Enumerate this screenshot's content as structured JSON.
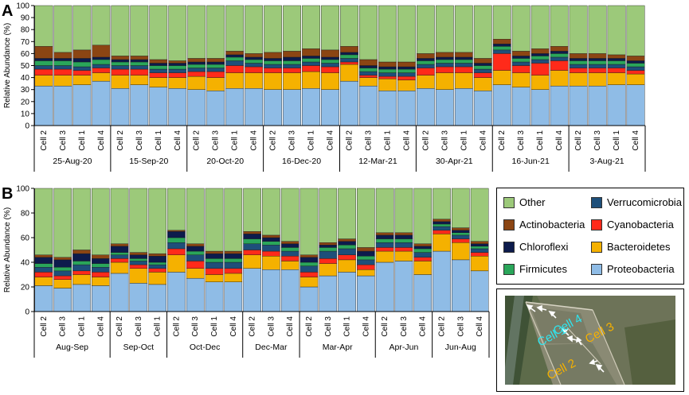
{
  "chart_data": [
    {
      "panel_label": "A",
      "type": "bar",
      "stacked": true,
      "ylabel": "Relative Abundance (%)",
      "ylim": [
        0,
        100
      ],
      "yticks": [
        0,
        10,
        20,
        30,
        40,
        50,
        60,
        70,
        80,
        90,
        100
      ],
      "categories": [
        "Cell 2",
        "Cell 3",
        "Cell 1",
        "Cell 4",
        "Cell 2",
        "Cell 3",
        "Cell 1",
        "Cell 4",
        "Cell 2",
        "Cell 3",
        "Cell 1",
        "Cell 4",
        "Cell 2",
        "Cell 3",
        "Cell 1",
        "Cell 4",
        "Cell 2",
        "Cell 3",
        "Cell 1",
        "Cell 4",
        "Cell 2",
        "Cell 3",
        "Cell 1",
        "Cell 4",
        "Cell 2",
        "Cell 3",
        "Cell 1",
        "Cell 4",
        "Cell 2",
        "Cell 3",
        "Cell 1",
        "Cell 4"
      ],
      "groups": [
        {
          "label": "25-Aug-20",
          "count": 4
        },
        {
          "label": "15-Sep-20",
          "count": 4
        },
        {
          "label": "20-Oct-20",
          "count": 4
        },
        {
          "label": "16-Dec-20",
          "count": 4
        },
        {
          "label": "12-Mar-21",
          "count": 4
        },
        {
          "label": "30-Apr-21",
          "count": 4
        },
        {
          "label": "16-Jun-21",
          "count": 4
        },
        {
          "label": "3-Aug-21",
          "count": 4
        }
      ],
      "series": [
        {
          "name": "Proteobacteria",
          "values": [
            33,
            33,
            34,
            37,
            31,
            34,
            32,
            31,
            30,
            29,
            31,
            31,
            30,
            30,
            31,
            30,
            37,
            33,
            29,
            29,
            31,
            30,
            31,
            29,
            34,
            32,
            30,
            33,
            33,
            33,
            34,
            34
          ]
        },
        {
          "name": "Bacteroidetes",
          "values": [
            9,
            9,
            8,
            7,
            11,
            8,
            8,
            9,
            11,
            11,
            13,
            13,
            14,
            14,
            14,
            14,
            14,
            7,
            10,
            9,
            11,
            14,
            13,
            11,
            12,
            12,
            12,
            13,
            11,
            11,
            10,
            9
          ]
        },
        {
          "name": "Cyanobacteria",
          "values": [
            5,
            5,
            4,
            4,
            5,
            5,
            4,
            4,
            4,
            5,
            6,
            5,
            4,
            4,
            5,
            5,
            2,
            2,
            2,
            3,
            6,
            5,
            5,
            4,
            14,
            6,
            10,
            8,
            4,
            4,
            4,
            3
          ]
        },
        {
          "name": "Verrucomicrobia",
          "values": [
            3,
            3,
            3,
            3,
            3,
            3,
            3,
            3,
            3,
            3,
            4,
            3,
            3,
            3,
            3,
            3,
            3,
            3,
            3,
            3,
            3,
            3,
            3,
            3,
            3,
            3,
            3,
            3,
            3,
            3,
            3,
            3
          ]
        },
        {
          "name": "Firmicutes",
          "values": [
            4,
            4,
            4,
            4,
            3,
            3,
            3,
            3,
            3,
            3,
            3,
            3,
            3,
            3,
            3,
            3,
            3,
            3,
            3,
            3,
            3,
            3,
            3,
            3,
            3,
            3,
            3,
            3,
            3,
            3,
            3,
            3
          ]
        },
        {
          "name": "Chloroflexi",
          "values": [
            2,
            2,
            3,
            2,
            2,
            2,
            2,
            2,
            2,
            2,
            2,
            2,
            2,
            3,
            2,
            2,
            2,
            2,
            2,
            2,
            2,
            2,
            2,
            2,
            2,
            2,
            2,
            2,
            2,
            2,
            2,
            2
          ]
        },
        {
          "name": "Actinobacteria",
          "values": [
            10,
            5,
            7,
            10,
            3,
            3,
            3,
            2,
            3,
            3,
            3,
            3,
            5,
            5,
            6,
            6,
            5,
            5,
            4,
            4,
            4,
            4,
            4,
            4,
            4,
            4,
            4,
            4,
            4,
            4,
            3,
            4
          ]
        },
        {
          "name": "Other",
          "values": [
            34,
            39,
            37,
            33,
            42,
            42,
            45,
            46,
            44,
            44,
            38,
            40,
            39,
            38,
            36,
            37,
            34,
            45,
            47,
            47,
            40,
            39,
            39,
            44,
            28,
            38,
            36,
            34,
            40,
            40,
            41,
            42
          ]
        }
      ]
    },
    {
      "panel_label": "B",
      "type": "bar",
      "stacked": true,
      "ylabel": "Relative Abundance (%)",
      "ylim": [
        0,
        100
      ],
      "yticks": [
        0,
        20,
        40,
        60,
        80,
        100
      ],
      "categories": [
        "Cell 2",
        "Cell 3",
        "Cell 1",
        "Cell 4",
        "Cell 2",
        "Cell 3",
        "Cell 1",
        "Cell 2",
        "Cell 3",
        "Cell 1",
        "Cell 4",
        "Cell 2",
        "Cell 3",
        "Cell 4",
        "Cell 2",
        "Cell 3",
        "Cell 1",
        "Cell 4",
        "Cell 2",
        "Cell 3",
        "Cell 4",
        "Cell 2",
        "Cell 3",
        "Cell 4"
      ],
      "groups": [
        {
          "label": "Aug-Sep",
          "count": 4
        },
        {
          "label": "Sep-Oct",
          "count": 3
        },
        {
          "label": "Oct-Dec",
          "count": 4
        },
        {
          "label": "Dec-Mar",
          "count": 3
        },
        {
          "label": "Mar-Apr",
          "count": 4
        },
        {
          "label": "Apr-Jun",
          "count": 3
        },
        {
          "label": "Jun-Aug",
          "count": 3
        }
      ],
      "series": [
        {
          "name": "Proteobacteria",
          "values": [
            21,
            19,
            22,
            21,
            31,
            23,
            22,
            32,
            27,
            24,
            24,
            35,
            34,
            34,
            20,
            29,
            32,
            29,
            40,
            41,
            30,
            49,
            42,
            33
          ]
        },
        {
          "name": "Bacteroidetes",
          "values": [
            7,
            7,
            8,
            7,
            9,
            12,
            10,
            14,
            8,
            6,
            7,
            11,
            11,
            7,
            8,
            10,
            10,
            5,
            9,
            8,
            11,
            14,
            14,
            12
          ]
        },
        {
          "name": "Cyanobacteria",
          "values": [
            4,
            3,
            3,
            4,
            3,
            3,
            3,
            5,
            6,
            5,
            4,
            4,
            4,
            4,
            4,
            4,
            4,
            4,
            3,
            3,
            3,
            3,
            3,
            3
          ]
        },
        {
          "name": "Verrucomicrobia",
          "values": [
            4,
            4,
            5,
            4,
            3,
            3,
            3,
            5,
            5,
            5,
            5,
            5,
            5,
            4,
            5,
            6,
            5,
            4,
            4,
            4,
            4,
            3,
            3,
            3
          ]
        },
        {
          "name": "Firmicutes",
          "values": [
            3,
            3,
            3,
            3,
            2,
            2,
            2,
            4,
            3,
            3,
            3,
            4,
            3,
            3,
            3,
            3,
            3,
            3,
            3,
            3,
            3,
            2,
            2,
            2
          ]
        },
        {
          "name": "Chloroflexi",
          "values": [
            5,
            6,
            6,
            4,
            5,
            3,
            5,
            5,
            4,
            4,
            4,
            4,
            3,
            3,
            4,
            2,
            3,
            4,
            3,
            3,
            2,
            2,
            2,
            2
          ]
        },
        {
          "name": "Actinobacteria",
          "values": [
            2,
            2,
            3,
            3,
            2,
            2,
            2,
            1,
            2,
            2,
            2,
            2,
            2,
            2,
            2,
            2,
            2,
            3,
            2,
            2,
            2,
            2,
            2,
            2
          ]
        },
        {
          "name": "Other",
          "values": [
            54,
            56,
            50,
            54,
            45,
            52,
            53,
            34,
            45,
            51,
            51,
            35,
            38,
            43,
            54,
            44,
            41,
            48,
            36,
            36,
            45,
            25,
            32,
            43
          ]
        }
      ]
    }
  ],
  "legend": [
    {
      "name": "Other",
      "color": "#9cc97a"
    },
    {
      "name": "Verrucomicrobia",
      "color": "#1e4f7a"
    },
    {
      "name": "Actinobacteria",
      "color": "#8b4513"
    },
    {
      "name": "Cyanobacteria",
      "color": "#ff2a1a"
    },
    {
      "name": "Chloroflexi",
      "color": "#0d1b4c"
    },
    {
      "name": "Bacteroidetes",
      "color": "#f5b100"
    },
    {
      "name": "Firmicutes",
      "color": "#2aa65a"
    },
    {
      "name": "Proteobacteria",
      "color": "#8fbce6"
    }
  ],
  "map": {
    "labels": [
      {
        "text": "Cell 1",
        "color": "#2ee6f0"
      },
      {
        "text": "Cell 4",
        "color": "#2ee6f0"
      },
      {
        "text": "Cell 3",
        "color": "#f5b100"
      },
      {
        "text": "Cell 2",
        "color": "#f5b100"
      }
    ]
  }
}
